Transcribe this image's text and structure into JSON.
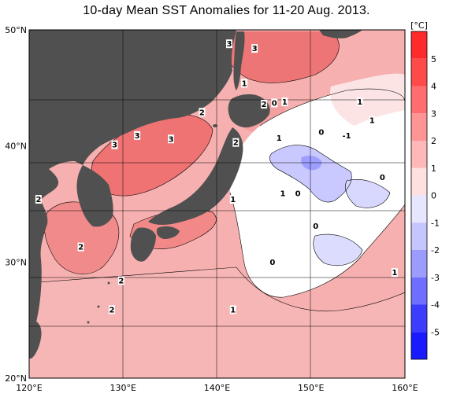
{
  "title": "10-day Mean SST Anomalies for 11-20 Aug. 2013.",
  "colorbar": {
    "unit": "[°C]",
    "levels": [
      5,
      4,
      3,
      2,
      1,
      0,
      -1,
      -2,
      -3,
      -4,
      -5
    ],
    "level_labels": [
      "5",
      "4",
      "3",
      "2",
      "1",
      "0",
      "-1",
      "-2",
      "-3",
      "-4",
      "-5"
    ],
    "colors": [
      "#ff2a2a",
      "#ff4a4a",
      "#ff6e6e",
      "#ff9494",
      "#ffb8b8",
      "#ffe0e0",
      "#e6e6ff",
      "#c6c6ff",
      "#9c9cff",
      "#6e6eff",
      "#3c3cff",
      "#1a1aff"
    ]
  },
  "axes": {
    "lon_labels": [
      "120°E",
      "130°E",
      "140°E",
      "150°E",
      "160°E"
    ],
    "lat_labels": [
      "50°N",
      "40°N",
      "30°N",
      "20°N"
    ],
    "lon_range": [
      120,
      160
    ],
    "lat_range": [
      20,
      50
    ]
  },
  "colors": {
    "land": "#505050",
    "ocean_warm": "#f4a4a4",
    "ocean_hot": "#ef7070",
    "ocean_neutral": "#ffffff",
    "ocean_cool": "#c8c8ff"
  },
  "contour_labels": [
    {
      "text": "3",
      "lon": 141.3,
      "lat": 48.7
    },
    {
      "text": "3",
      "lon": 144.0,
      "lat": 48.3
    },
    {
      "text": "1",
      "lon": 142.9,
      "lat": 45.3
    },
    {
      "text": "2",
      "lon": 145.0,
      "lat": 43.5
    },
    {
      "text": "0",
      "lon": 146.1,
      "lat": 43.6
    },
    {
      "text": "1",
      "lon": 147.2,
      "lat": 43.7
    },
    {
      "text": "1",
      "lon": 155.2,
      "lat": 43.7
    },
    {
      "text": "2",
      "lon": 138.4,
      "lat": 42.8
    },
    {
      "text": "1",
      "lon": 156.5,
      "lat": 42.1
    },
    {
      "text": "0",
      "lon": 151.1,
      "lat": 41.1
    },
    {
      "text": "-1",
      "lon": 153.8,
      "lat": 40.8
    },
    {
      "text": "1",
      "lon": 146.6,
      "lat": 40.6
    },
    {
      "text": "3",
      "lon": 131.5,
      "lat": 40.8
    },
    {
      "text": "3",
      "lon": 129.1,
      "lat": 40.0
    },
    {
      "text": "3",
      "lon": 135.1,
      "lat": 40.5
    },
    {
      "text": "2",
      "lon": 142.0,
      "lat": 40.2
    },
    {
      "text": "0",
      "lon": 157.6,
      "lat": 37.2
    },
    {
      "text": "1",
      "lon": 147.0,
      "lat": 35.8
    },
    {
      "text": "0",
      "lon": 148.6,
      "lat": 35.8
    },
    {
      "text": "1",
      "lon": 141.7,
      "lat": 35.3
    },
    {
      "text": "2",
      "lon": 121.0,
      "lat": 35.3
    },
    {
      "text": "0",
      "lon": 150.5,
      "lat": 33.0
    },
    {
      "text": "2",
      "lon": 125.5,
      "lat": 31.2
    },
    {
      "text": "0",
      "lon": 145.9,
      "lat": 29.9
    },
    {
      "text": "1",
      "lon": 158.9,
      "lat": 29.0
    },
    {
      "text": "2",
      "lon": 129.8,
      "lat": 28.3
    },
    {
      "text": "2",
      "lon": 128.8,
      "lat": 25.8
    },
    {
      "text": "1",
      "lon": 141.7,
      "lat": 25.8
    }
  ]
}
